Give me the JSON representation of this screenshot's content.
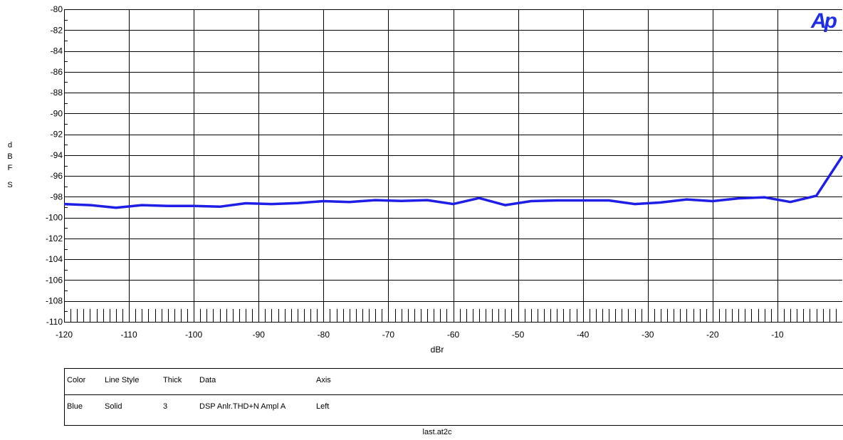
{
  "chart_data": {
    "type": "line",
    "xlabel": "dBr",
    "ylabel": "dBFS",
    "xlim": [
      -120,
      0
    ],
    "ylim": [
      -110,
      -80
    ],
    "x_ticks": [
      -120,
      -110,
      -100,
      -90,
      -80,
      -70,
      -60,
      -50,
      -40,
      -30,
      -20,
      -10
    ],
    "y_ticks": [
      -80,
      -82,
      -84,
      -86,
      -88,
      -90,
      -92,
      -94,
      -96,
      -98,
      -100,
      -102,
      -104,
      -106,
      -108,
      -110
    ],
    "grid": true,
    "series": [
      {
        "color": "#1e1ee6",
        "x": [
          -120,
          -116,
          -112,
          -108,
          -104,
          -100,
          -96,
          -92,
          -88,
          -84,
          -80,
          -76,
          -72,
          -68,
          -64,
          -60,
          -56,
          -52,
          -48,
          -44,
          -40,
          -36,
          -32,
          -28,
          -24,
          -20,
          -16,
          -12,
          -8,
          -4,
          0
        ],
        "values": [
          -98.7,
          -98.8,
          -99.05,
          -98.8,
          -98.88,
          -98.88,
          -98.95,
          -98.62,
          -98.7,
          -98.6,
          -98.42,
          -98.5,
          -98.32,
          -98.4,
          -98.32,
          -98.7,
          -98.12,
          -98.8,
          -98.42,
          -98.35,
          -98.35,
          -98.35,
          -98.7,
          -98.55,
          -98.25,
          -98.42,
          -98.15,
          -98.05,
          -98.5,
          -97.9,
          -94.1
        ]
      }
    ]
  },
  "legend": {
    "headers": {
      "color": "Color",
      "line_style": "Line Style",
      "thick": "Thick",
      "data": "Data",
      "axis": "Axis"
    },
    "row": {
      "color": "Blue",
      "line_style": "Solid",
      "thick": "3",
      "data": "DSP Anlr.THD+N Ampl A",
      "axis": "Left"
    }
  },
  "ylabel_letters": [
    "d",
    "B",
    "F",
    "S"
  ],
  "filename": "last.at2c",
  "logo_text": "Ap"
}
